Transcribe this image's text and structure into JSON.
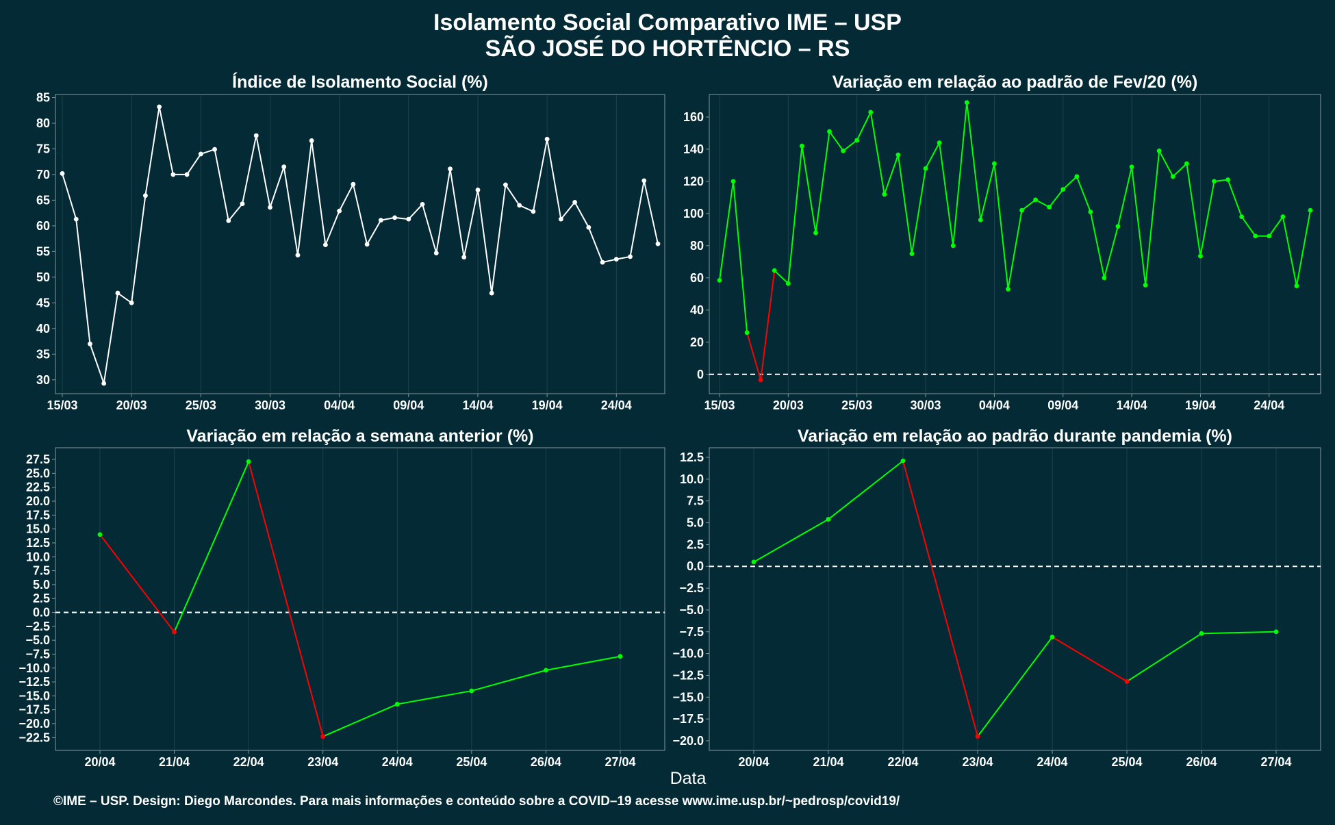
{
  "header": {
    "title_line1": "Isolamento Social Comparativo IME – USP",
    "title_line2": "SÃO JOSÉ DO HORTÊNCIO – RS"
  },
  "x_axis_label": "Data",
  "footer": "©IME – USP. Design: Diego Marcondes. Para mais informações e conteúdo sobre a COVID–19 acesse www.ime.usp.br/~pedrosp/covid19/",
  "colors": {
    "background": "#042a35",
    "line_white": "#ffffff",
    "positive": "#00ff00",
    "negative": "#ff0000",
    "grid": "#1d4350",
    "frame": "#7f98a0"
  },
  "chart_data": [
    {
      "id": "isolamento",
      "type": "line",
      "title": "Índice de Isolamento Social (%)",
      "x": [
        "15/03",
        "16/03",
        "17/03",
        "18/03",
        "19/03",
        "20/03",
        "21/03",
        "22/03",
        "23/03",
        "24/03",
        "25/03",
        "26/03",
        "27/03",
        "28/03",
        "29/03",
        "30/03",
        "31/03",
        "01/04",
        "02/04",
        "03/04",
        "04/04",
        "05/04",
        "06/04",
        "07/04",
        "08/04",
        "09/04",
        "10/04",
        "11/04",
        "12/04",
        "13/04",
        "14/04",
        "15/04",
        "16/04",
        "17/04",
        "18/04",
        "19/04",
        "20/04",
        "21/04",
        "22/04",
        "23/04",
        "24/04",
        "25/04",
        "26/04",
        "27/04"
      ],
      "values": [
        70.2,
        61.3,
        37,
        29.3,
        46.9,
        45,
        65.9,
        83.2,
        70,
        70,
        74,
        74.9,
        61,
        64.3,
        77.6,
        63.6,
        71.5,
        54.3,
        76.6,
        56.3,
        62.9,
        68.1,
        56.4,
        61.1,
        61.6,
        61.3,
        64.2,
        54.7,
        71.1,
        53.9,
        67,
        46.9,
        68,
        64,
        62.8,
        76.9,
        61.3,
        64.6,
        59.7,
        52.9,
        53.5,
        54,
        68.8,
        56.5
      ],
      "x_ticks": [
        "15/03",
        "20/03",
        "25/03",
        "30/03",
        "04/04",
        "09/04",
        "14/04",
        "19/04",
        "24/04"
      ],
      "y_ticks": [
        30,
        35,
        40,
        45,
        50,
        55,
        60,
        65,
        70,
        75,
        80,
        85
      ],
      "ylim": [
        27.3,
        85.6
      ],
      "color_mode": "white",
      "zero_line": false
    },
    {
      "id": "fev20",
      "type": "line",
      "title": "Variação em relação ao padrão de Fev/20 (%)",
      "x": [
        "15/03",
        "16/03",
        "17/03",
        "18/03",
        "19/03",
        "20/03",
        "21/03",
        "22/03",
        "23/03",
        "24/03",
        "25/03",
        "26/03",
        "27/03",
        "28/03",
        "29/03",
        "30/03",
        "31/03",
        "01/04",
        "02/04",
        "03/04",
        "04/04",
        "05/04",
        "06/04",
        "07/04",
        "08/04",
        "09/04",
        "10/04",
        "11/04",
        "12/04",
        "13/04",
        "14/04",
        "15/04",
        "16/04",
        "17/04",
        "18/04",
        "19/04",
        "20/04",
        "21/04",
        "22/04",
        "23/04",
        "24/04",
        "25/04",
        "26/04",
        "27/04"
      ],
      "values": [
        58.5,
        120,
        26,
        -3.5,
        64.5,
        56.5,
        142,
        88,
        151,
        139,
        145.5,
        163,
        112,
        136.5,
        75,
        128,
        144,
        80,
        169,
        96,
        131,
        53,
        102,
        108.5,
        104,
        115,
        123,
        101,
        60,
        92,
        129,
        55.5,
        139,
        123,
        131,
        73.5,
        120,
        121,
        98,
        86,
        86,
        98,
        55,
        102
      ],
      "x_ticks": [
        "15/03",
        "20/03",
        "25/03",
        "30/03",
        "04/04",
        "09/04",
        "14/04",
        "19/04",
        "24/04"
      ],
      "y_ticks": [
        0,
        20,
        40,
        60,
        80,
        100,
        120,
        140,
        160
      ],
      "ylim": [
        -12,
        174
      ],
      "color_mode": "sign",
      "zero_line": true
    },
    {
      "id": "semana",
      "type": "line",
      "title": "Variação em relação a semana anterior (%)",
      "x": [
        "20/04",
        "21/04",
        "22/04",
        "23/04",
        "24/04",
        "25/04",
        "26/04",
        "27/04"
      ],
      "values": [
        14,
        -3.5,
        27.1,
        -22.3,
        -16.5,
        -14.1,
        -10.4,
        -7.9
      ],
      "x_ticks": [
        "20/04",
        "21/04",
        "22/04",
        "23/04",
        "24/04",
        "25/04",
        "26/04",
        "27/04"
      ],
      "y_ticks": [
        -22.5,
        -20,
        -17.5,
        -15,
        -12.5,
        -10,
        -7.5,
        -5,
        -2.5,
        0,
        2.5,
        5,
        7.5,
        10,
        12.5,
        15,
        17.5,
        20,
        22.5,
        25,
        27.5
      ],
      "ylim": [
        -24.8,
        29.6
      ],
      "color_mode": "trend",
      "zero_line": true
    },
    {
      "id": "pandemia",
      "type": "line",
      "title": "Variação em relação ao padrão durante pandemia (%)",
      "x": [
        "20/04",
        "21/04",
        "22/04",
        "23/04",
        "24/04",
        "25/04",
        "26/04",
        "27/04"
      ],
      "values": [
        0.5,
        5.4,
        12.1,
        -19.5,
        -8.1,
        -13.2,
        -7.7,
        -7.5
      ],
      "x_ticks": [
        "20/04",
        "21/04",
        "22/04",
        "23/04",
        "24/04",
        "25/04",
        "26/04",
        "27/04"
      ],
      "y_ticks": [
        -20,
        -17.5,
        -15,
        -12.5,
        -10,
        -7.5,
        -5,
        -2.5,
        0,
        2.5,
        5,
        7.5,
        10,
        12.5
      ],
      "ylim": [
        -21.1,
        13.6
      ],
      "color_mode": "trend",
      "zero_line": true
    }
  ]
}
